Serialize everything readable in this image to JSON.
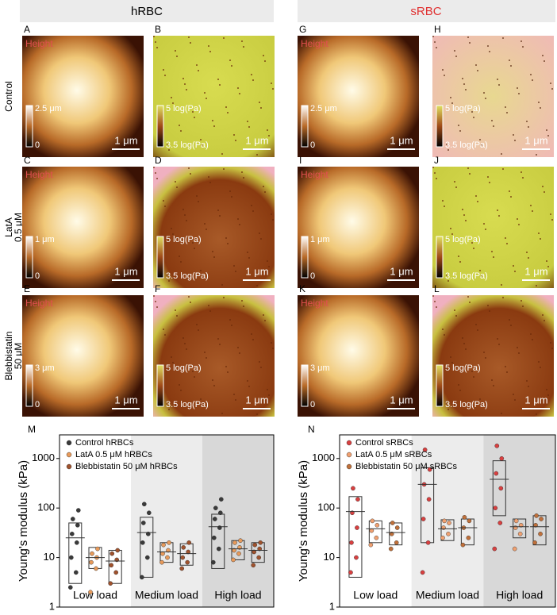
{
  "header": {
    "columns": [
      "hRBC",
      "sRBC"
    ]
  },
  "row_labels": [
    [
      "Control"
    ],
    [
      "LatA",
      "0.5 μM"
    ],
    [
      "Blebbistatin",
      "50 μM"
    ]
  ],
  "panels": [
    {
      "letter": "A",
      "label": "Height",
      "bar_top": "2.5 μm",
      "bar_bottom": "0",
      "scale": "1 μm"
    },
    {
      "letter": "B",
      "bar_top": "5 log(Pa)",
      "bar_bottom": "3.5 log(Pa)",
      "scale": "1 μm"
    },
    {
      "letter": "G",
      "label": "Height",
      "bar_top": "2.5 μm",
      "bar_bottom": "0",
      "scale": "1 μm"
    },
    {
      "letter": "H",
      "bar_top": "5 log(Pa)",
      "bar_bottom": "3.5 log(Pa)",
      "scale": "1 μm"
    },
    {
      "letter": "C",
      "label": "Height",
      "bar_top": "1 μm",
      "bar_bottom": "0",
      "scale": "1 μm"
    },
    {
      "letter": "D",
      "bar_top": "5 log(Pa)",
      "bar_bottom": "3.5 log(Pa)",
      "scale": "1 μm"
    },
    {
      "letter": "I",
      "label": "Height",
      "bar_top": "1 μm",
      "bar_bottom": "0",
      "scale": "1 μm"
    },
    {
      "letter": "J",
      "bar_top": "5 log(Pa)",
      "bar_bottom": "3.5 log(Pa)",
      "scale": "1 μm"
    },
    {
      "letter": "E",
      "label": "Height",
      "bar_top": "3 μm",
      "bar_bottom": "0",
      "scale": "1 μm"
    },
    {
      "letter": "F",
      "bar_top": "5 log(Pa)",
      "bar_bottom": "3.5 log(Pa)",
      "scale": "1 μm"
    },
    {
      "letter": "K",
      "label": "Height",
      "bar_top": "3 μm",
      "bar_bottom": "0",
      "scale": "1 μm"
    },
    {
      "letter": "L",
      "bar_top": "5 log(Pa)",
      "bar_bottom": "3.5 log(Pa)",
      "scale": "1 μm"
    }
  ],
  "chart_data": [
    {
      "type": "box",
      "panel": "M",
      "ylabel": "Young's modulus (kPa)",
      "log_y": true,
      "ylim": [
        1,
        3000
      ],
      "yticks": [
        1,
        10,
        100,
        1000
      ],
      "categories": [
        "Low load",
        "Medium load",
        "High load"
      ],
      "series": [
        {
          "name": "Control hRBCs",
          "color": "#3a3a3a",
          "mean": [
            25,
            32,
            42
          ],
          "box_low": [
            3,
            4,
            6
          ],
          "box_high": [
            50,
            65,
            75
          ],
          "points": [
            [
              2.5,
              5,
              10,
              20,
              30,
              45,
              60,
              90
            ],
            [
              4,
              10,
              20,
              30,
              50,
              80,
              120
            ],
            [
              8,
              15,
              25,
              40,
              60,
              80,
              100,
              150
            ]
          ]
        },
        {
          "name": "LatA 0.5 μM hRBCs",
          "color": "#e89a5a",
          "mean": [
            10,
            13,
            15
          ],
          "box_low": [
            6,
            8,
            9
          ],
          "box_high": [
            16,
            20,
            22
          ],
          "points": [
            [
              2,
              6,
              8,
              10,
              12,
              15
            ],
            [
              8,
              10,
              12,
              14,
              18,
              20
            ],
            [
              9,
              12,
              14,
              16,
              20,
              22
            ]
          ]
        },
        {
          "name": "Blebbistatin 50 μM hRBCs",
          "color": "#a0522d",
          "mean": [
            8.5,
            12,
            14
          ],
          "box_low": [
            3,
            7,
            8
          ],
          "box_high": [
            14,
            19,
            20
          ],
          "points": [
            [
              3,
              5,
              7,
              9,
              12,
              14
            ],
            [
              6,
              8,
              10,
              13,
              16,
              20
            ],
            [
              7,
              10,
              13,
              15,
              18,
              20
            ]
          ]
        }
      ]
    },
    {
      "type": "box",
      "panel": "N",
      "ylabel": "Young's modulus (kPa)",
      "log_y": true,
      "ylim": [
        1,
        3000
      ],
      "yticks": [
        1,
        10,
        100,
        1000
      ],
      "categories": [
        "Low load",
        "Medium load",
        "High load"
      ],
      "series": [
        {
          "name": "Control sRBCs",
          "color": "#d94040",
          "mean": [
            85,
            300,
            380
          ],
          "box_low": [
            4,
            20,
            70
          ],
          "box_high": [
            170,
            650,
            900
          ],
          "points": [
            [
              5,
              10,
              20,
              40,
              80,
              150,
              250
            ],
            [
              5,
              20,
              60,
              150,
              300,
              600,
              1500
            ],
            [
              15,
              50,
              100,
              250,
              500,
              1000,
              1800
            ]
          ]
        },
        {
          "name": "LatA 0.5 μM sRBCs",
          "color": "#f0a070",
          "mean": [
            38,
            38,
            42
          ],
          "box_low": [
            20,
            22,
            25
          ],
          "box_high": [
            55,
            58,
            60
          ],
          "points": [
            [
              18,
              25,
              35,
              45,
              55
            ],
            [
              25,
              30,
              40,
              50,
              55
            ],
            [
              15,
              30,
              40,
              45,
              55
            ]
          ]
        },
        {
          "name": "Blebbistatin 50 μM sRBCs",
          "color": "#c0703a",
          "mean": [
            32,
            40,
            42
          ],
          "box_low": [
            18,
            18,
            18
          ],
          "box_high": [
            50,
            60,
            70
          ],
          "points": [
            [
              15,
              20,
              30,
              40,
              50
            ],
            [
              18,
              25,
              40,
              55,
              65
            ],
            [
              20,
              30,
              45,
              60,
              70
            ]
          ]
        }
      ]
    }
  ]
}
